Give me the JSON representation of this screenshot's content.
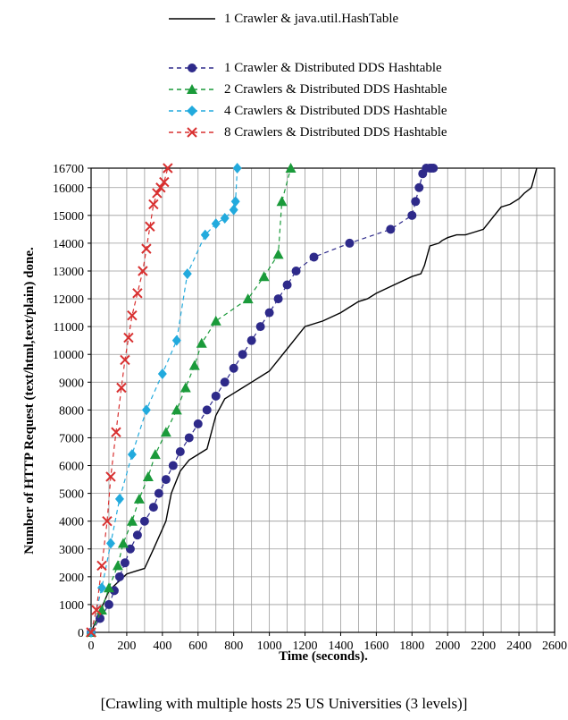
{
  "chart_data": {
    "type": "line",
    "title": "",
    "xlabel": "Time (seconds).",
    "ylabel": "Number of HTTP Request (text/html,text/plain) done.",
    "caption": "[Crawling with multiple hosts 25 US Universities (3 levels)]",
    "xlim": [
      0,
      2600
    ],
    "ylim": [
      0,
      16700
    ],
    "x_ticks": [
      0,
      200,
      400,
      600,
      800,
      1000,
      1200,
      1400,
      1600,
      1800,
      2000,
      2200,
      2400,
      2600
    ],
    "y_ticks": [
      0,
      1000,
      2000,
      3000,
      4000,
      5000,
      6000,
      7000,
      8000,
      9000,
      10000,
      11000,
      12000,
      13000,
      14000,
      15000,
      16000,
      16700
    ],
    "grid": true,
    "legend_position": "top",
    "reference_line": {
      "y": 16700,
      "style": "dotted"
    },
    "series": [
      {
        "name": "1 Crawler & java.util.HashTable",
        "color": "#000000",
        "style": "solid",
        "marker": "none",
        "x": [
          0,
          100,
          200,
          250,
          300,
          350,
          420,
          450,
          500,
          550,
          600,
          650,
          700,
          750,
          800,
          850,
          900,
          950,
          1000,
          1050,
          1100,
          1200,
          1300,
          1400,
          1450,
          1500,
          1550,
          1600,
          1700,
          1800,
          1850,
          1870,
          1900,
          1950,
          1970,
          2000,
          2050,
          2100,
          2150,
          2200,
          2250,
          2300,
          2350,
          2400,
          2430,
          2470,
          2500
        ],
        "y": [
          0,
          1500,
          2100,
          2200,
          2300,
          3000,
          4000,
          5000,
          5800,
          6200,
          6400,
          6600,
          7800,
          8400,
          8600,
          8800,
          9000,
          9200,
          9400,
          9800,
          10200,
          11000,
          11200,
          11500,
          11700,
          11900,
          12000,
          12200,
          12500,
          12800,
          12900,
          13200,
          13900,
          14000,
          14100,
          14200,
          14300,
          14300,
          14400,
          14500,
          14900,
          15300,
          15400,
          15600,
          15800,
          16000,
          16700
        ]
      },
      {
        "name": "1 Crawler  & Distributed DDS Hashtable",
        "color": "#2e2a8a",
        "style": "dashed",
        "marker": "circle",
        "x": [
          0,
          50,
          100,
          130,
          160,
          190,
          220,
          260,
          300,
          350,
          380,
          420,
          460,
          500,
          550,
          600,
          650,
          700,
          750,
          800,
          850,
          900,
          950,
          1000,
          1050,
          1100,
          1150,
          1250,
          1450,
          1680,
          1800,
          1820,
          1840,
          1860,
          1880,
          1900,
          1910,
          1920
        ],
        "y": [
          0,
          500,
          1000,
          1500,
          2000,
          2500,
          3000,
          3500,
          4000,
          4500,
          5000,
          5500,
          6000,
          6500,
          7000,
          7500,
          8000,
          8500,
          9000,
          9500,
          10000,
          10500,
          11000,
          11500,
          12000,
          12500,
          13000,
          13500,
          14000,
          14500,
          15000,
          15500,
          16000,
          16500,
          16700,
          16700,
          16700,
          16700
        ]
      },
      {
        "name": "2 Crawlers & Distributed DDS Hashtable",
        "color": "#1a9a3a",
        "style": "dashed",
        "marker": "triangle",
        "x": [
          0,
          60,
          100,
          150,
          180,
          230,
          270,
          320,
          360,
          420,
          480,
          530,
          580,
          620,
          700,
          880,
          970,
          1050,
          1070,
          1120
        ],
        "y": [
          0,
          800,
          1600,
          2400,
          3200,
          4000,
          4800,
          5600,
          6400,
          7200,
          8000,
          8800,
          9600,
          10400,
          11200,
          12000,
          12800,
          13600,
          15500,
          16700
        ]
      },
      {
        "name": "4 Crawlers & Distributed DDS Hashtable",
        "color": "#22aadd",
        "style": "dashed",
        "marker": "diamond",
        "x": [
          0,
          60,
          110,
          160,
          230,
          310,
          400,
          480,
          540,
          640,
          700,
          750,
          800,
          810,
          820
        ],
        "y": [
          0,
          1600,
          3200,
          4800,
          6400,
          8000,
          9300,
          10500,
          12900,
          14300,
          14700,
          14900,
          15200,
          15500,
          16700
        ]
      },
      {
        "name": "8 Crawlers & Distributed DDS Hashtable",
        "color": "#d83030",
        "style": "dashed",
        "marker": "x",
        "x": [
          0,
          30,
          60,
          90,
          110,
          140,
          170,
          190,
          210,
          230,
          260,
          290,
          310,
          330,
          350,
          370,
          390,
          410,
          430
        ],
        "y": [
          0,
          800,
          2400,
          4000,
          5600,
          7200,
          8800,
          9800,
          10600,
          11400,
          12200,
          13000,
          13800,
          14600,
          15400,
          15800,
          16000,
          16200,
          16700
        ]
      }
    ]
  }
}
